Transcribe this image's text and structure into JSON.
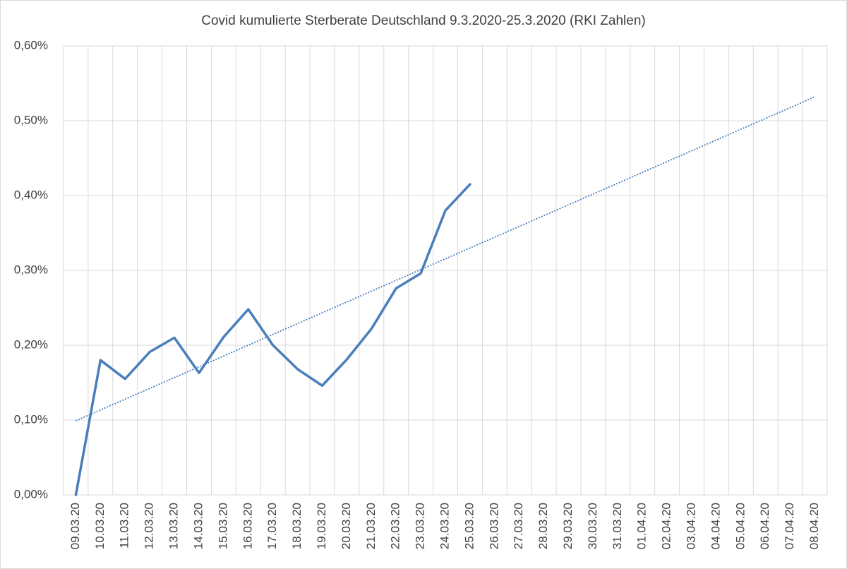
{
  "chart_data": {
    "type": "line",
    "title": "Covid kumulierte Sterberate Deutschland 9.3.2020-25.3.2020 (RKI Zahlen)",
    "categories": [
      "09.03.20",
      "10.03.20",
      "11.03.20",
      "12.03.20",
      "13.03.20",
      "14.03.20",
      "15.03.20",
      "16.03.20",
      "17.03.20",
      "18.03.20",
      "19.03.20",
      "20.03.20",
      "21.03.20",
      "22.03.20",
      "23.03.20",
      "24.03.20",
      "25.03.20",
      "26.03.20",
      "27.03.20",
      "28.03.20",
      "29.03.20",
      "30.03.20",
      "31.03.20",
      "01.04.20",
      "02.04.20",
      "03.04.20",
      "04.04.20",
      "05.04.20",
      "06.04.20",
      "07.04.20",
      "08.04.20"
    ],
    "series": [
      {
        "color": "#4a7ebb",
        "values": [
          0,
          0.18,
          0.155,
          0.191,
          0.21,
          0.163,
          0.211,
          0.248,
          0.2,
          0.168,
          0.146,
          0.181,
          0.222,
          0.276,
          0.296,
          0.38,
          0.415,
          null,
          null,
          null,
          null,
          null,
          null,
          null,
          null,
          null,
          null,
          null,
          null,
          null,
          null
        ]
      }
    ],
    "trendline": {
      "color": "#4a7ebb",
      "style": "dotted",
      "values": [
        0.099,
        0.532
      ]
    },
    "ylim": [
      0,
      0.6
    ],
    "yticks": [
      {
        "value": 0,
        "label": "0,00%"
      },
      {
        "value": 0.1,
        "label": "0,10%"
      },
      {
        "value": 0.2,
        "label": "0,20%"
      },
      {
        "value": 0.3,
        "label": "0,30%"
      },
      {
        "value": 0.4,
        "label": "0,40%"
      },
      {
        "value": 0.5,
        "label": "0,50%"
      },
      {
        "value": 0.6,
        "label": "0,60%"
      }
    ],
    "grid": true
  }
}
